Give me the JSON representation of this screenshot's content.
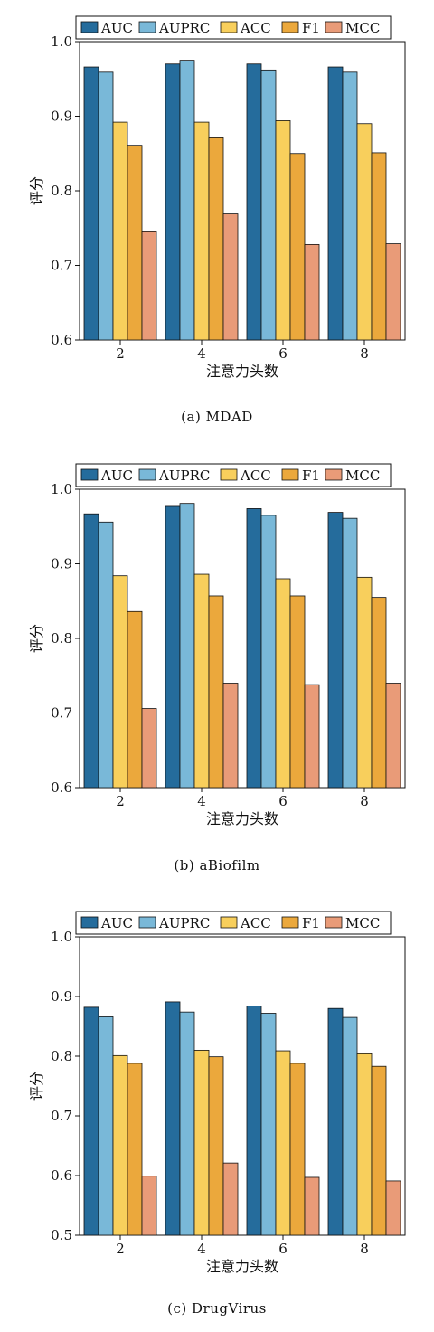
{
  "colors": {
    "AUC": "#256c9c",
    "AUPRC": "#79b8d8",
    "ACC": "#f8cf5c",
    "F1": "#eba83c",
    "MCC": "#e99b78"
  },
  "chart_data": [
    {
      "type": "bar",
      "xlabel": "注意力头数",
      "ylabel": "评分",
      "categories": [
        "2",
        "4",
        "6",
        "8"
      ],
      "ylim": [
        0.6,
        1.0
      ],
      "yticks": [
        "0.6",
        "0.7",
        "0.8",
        "0.9",
        "1.0"
      ],
      "legend_position": "top",
      "series": [
        {
          "name": "AUC",
          "values": [
            0.966,
            0.97,
            0.97,
            0.966
          ]
        },
        {
          "name": "AUPRC",
          "values": [
            0.959,
            0.975,
            0.962,
            0.959
          ]
        },
        {
          "name": "ACC",
          "values": [
            0.892,
            0.892,
            0.894,
            0.89
          ]
        },
        {
          "name": "F1",
          "values": [
            0.861,
            0.871,
            0.85,
            0.851
          ]
        },
        {
          "name": "MCC",
          "values": [
            0.745,
            0.769,
            0.728,
            0.729
          ]
        }
      ],
      "caption": "(a) MDAD"
    },
    {
      "type": "bar",
      "xlabel": "注意力头数",
      "ylabel": "评分",
      "categories": [
        "2",
        "4",
        "6",
        "8"
      ],
      "ylim": [
        0.6,
        1.0
      ],
      "yticks": [
        "0.6",
        "0.7",
        "0.8",
        "0.9",
        "1.0"
      ],
      "legend_position": "top",
      "series": [
        {
          "name": "AUC",
          "values": [
            0.967,
            0.977,
            0.974,
            0.969
          ]
        },
        {
          "name": "AUPRC",
          "values": [
            0.956,
            0.981,
            0.965,
            0.961
          ]
        },
        {
          "name": "ACC",
          "values": [
            0.884,
            0.886,
            0.88,
            0.882
          ]
        },
        {
          "name": "F1",
          "values": [
            0.836,
            0.857,
            0.857,
            0.855
          ]
        },
        {
          "name": "MCC",
          "values": [
            0.706,
            0.74,
            0.738,
            0.74
          ]
        }
      ],
      "caption": "(b) aBiofilm"
    },
    {
      "type": "bar",
      "xlabel": "注意力头数",
      "ylabel": "评分",
      "categories": [
        "2",
        "4",
        "6",
        "8"
      ],
      "ylim": [
        0.5,
        1.0
      ],
      "yticks": [
        "0.5",
        "0.6",
        "0.7",
        "0.8",
        "0.9",
        "1.0"
      ],
      "legend_position": "top",
      "series": [
        {
          "name": "AUC",
          "values": [
            0.882,
            0.891,
            0.884,
            0.88
          ]
        },
        {
          "name": "AUPRC",
          "values": [
            0.866,
            0.874,
            0.872,
            0.865
          ]
        },
        {
          "name": "ACC",
          "values": [
            0.801,
            0.81,
            0.809,
            0.804
          ]
        },
        {
          "name": "F1",
          "values": [
            0.788,
            0.799,
            0.788,
            0.783
          ]
        },
        {
          "name": "MCC",
          "values": [
            0.599,
            0.621,
            0.597,
            0.591
          ]
        }
      ],
      "caption": "(c) DrugVirus"
    }
  ]
}
